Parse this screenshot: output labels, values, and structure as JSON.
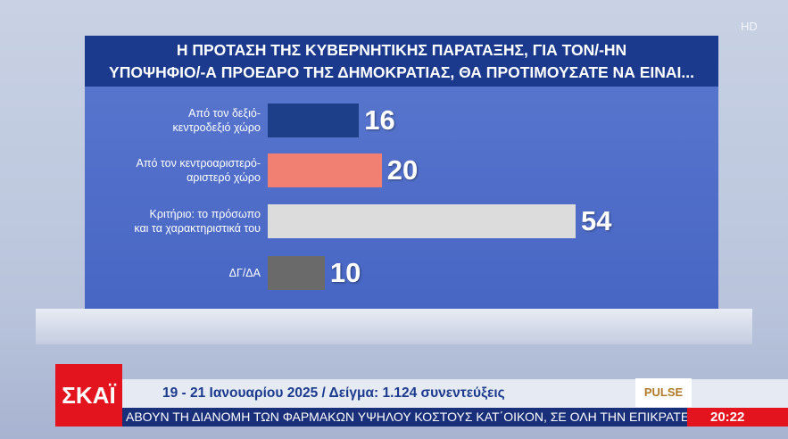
{
  "chart_data": {
    "type": "hbar",
    "title": "Η ΠΡΟΤΑΣΗ ΤΗΣ ΚΥΒΕΡΝΗΤΙΚΗΣ ΠΑΡΑΤΑΞΗΣ, ΓΙΑ ΤΟΝ/-ΗΝ\nΥΠΟΨΗΦΙΟ/-Α ΠΡΟΕΔΡΟ ΤΗΣ ΔΗΜΟΚΡΑΤΙΑΣ, ΘΑ ΠΡΟΤΙΜΟΥΣΑΤΕ ΝΑ ΕΙΝΑΙ...",
    "categories": [
      "Από τον δεξιό-\nκεντροδεξιό χώρο",
      "Από τον κεντροαριστερό-\nαριστερό χώρο",
      "Κριτήριο: το πρόσωπο\nκαι τα χαρακτηριστικά του",
      "ΔΓ/ΔΑ"
    ],
    "values": [
      16,
      20,
      54,
      10
    ],
    "colors": [
      "#1d3f8a",
      "#f28072",
      "#dcdcdc",
      "#6a6a6a"
    ]
  },
  "overlay": {
    "channel_logo": "ΣΚΑΪ",
    "hd": "HD",
    "footer": "19 - 21 Ιανουαρίου 2025 / Δείγμα: 1.124 συνεντεύξεις",
    "pollster": "PULSE",
    "ticker": "ΑΒΟΥΝ ΤΗ ΔΙΑΝΟΜΗ ΤΩΝ ΦΑΡΜΑΚΩΝ ΥΨΗΛΟΥ ΚΟΣΤΟΥΣ ΚΑΤ΄ΟΙΚΟΝ, ΣΕ ΟΛΗ ΤΗΝ ΕΠΙΚΡΑΤΕ",
    "time": "20:22"
  }
}
